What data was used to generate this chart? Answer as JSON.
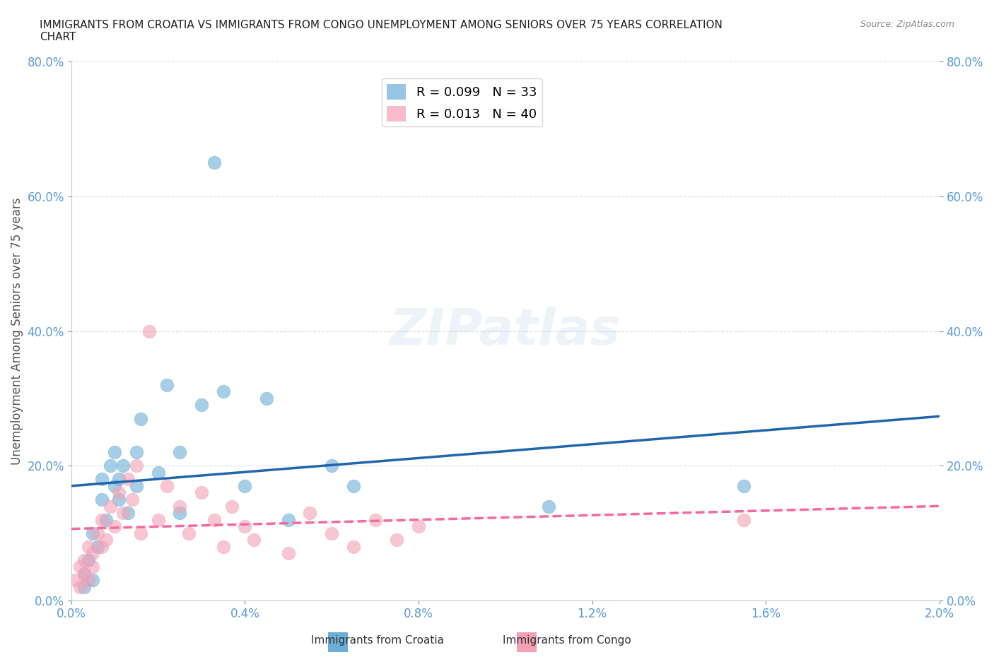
{
  "title": "IMMIGRANTS FROM CROATIA VS IMMIGRANTS FROM CONGO UNEMPLOYMENT AMONG SENIORS OVER 75 YEARS CORRELATION\nCHART",
  "source": "Source: ZipAtlas.com",
  "ylabel": "Unemployment Among Seniors over 75 years",
  "xlabel": "",
  "croatia_R": 0.099,
  "croatia_N": 33,
  "congo_R": 0.013,
  "congo_N": 40,
  "xlim": [
    0.0,
    0.02
  ],
  "ylim": [
    0.0,
    0.8
  ],
  "xticks": [
    0.0,
    0.004,
    0.008,
    0.012,
    0.016,
    0.02
  ],
  "yticks": [
    0.0,
    0.2,
    0.4,
    0.6,
    0.8
  ],
  "croatia_color": "#6baed6",
  "congo_color": "#f4a0b5",
  "croatia_line_color": "#2166ac",
  "congo_line_color": "#f768a1",
  "watermark": "ZIPatlas",
  "croatia_x": [
    0.0003,
    0.0003,
    0.0004,
    0.0005,
    0.0005,
    0.0006,
    0.0007,
    0.0007,
    0.0008,
    0.0009,
    0.001,
    0.001,
    0.0011,
    0.0011,
    0.0012,
    0.0013,
    0.0015,
    0.0015,
    0.0016,
    0.002,
    0.0022,
    0.0025,
    0.0025,
    0.003,
    0.0033,
    0.0035,
    0.004,
    0.0045,
    0.005,
    0.006,
    0.0065,
    0.011,
    0.0155
  ],
  "croatia_y": [
    0.02,
    0.04,
    0.06,
    0.03,
    0.1,
    0.08,
    0.15,
    0.18,
    0.12,
    0.2,
    0.17,
    0.22,
    0.18,
    0.15,
    0.2,
    0.13,
    0.17,
    0.22,
    0.27,
    0.19,
    0.32,
    0.13,
    0.22,
    0.29,
    0.65,
    0.31,
    0.17,
    0.3,
    0.12,
    0.2,
    0.17,
    0.14,
    0.17
  ],
  "congo_x": [
    0.0001,
    0.0002,
    0.0002,
    0.0003,
    0.0003,
    0.0004,
    0.0004,
    0.0005,
    0.0005,
    0.0006,
    0.0007,
    0.0007,
    0.0008,
    0.0009,
    0.001,
    0.0011,
    0.0012,
    0.0013,
    0.0014,
    0.0015,
    0.0016,
    0.0018,
    0.002,
    0.0022,
    0.0025,
    0.0027,
    0.003,
    0.0033,
    0.0035,
    0.0037,
    0.004,
    0.0042,
    0.005,
    0.0055,
    0.006,
    0.0065,
    0.007,
    0.0075,
    0.008,
    0.0155
  ],
  "congo_y": [
    0.03,
    0.02,
    0.05,
    0.04,
    0.06,
    0.03,
    0.08,
    0.05,
    0.07,
    0.1,
    0.08,
    0.12,
    0.09,
    0.14,
    0.11,
    0.16,
    0.13,
    0.18,
    0.15,
    0.2,
    0.1,
    0.4,
    0.12,
    0.17,
    0.14,
    0.1,
    0.16,
    0.12,
    0.08,
    0.14,
    0.11,
    0.09,
    0.07,
    0.13,
    0.1,
    0.08,
    0.12,
    0.09,
    0.11,
    0.12
  ],
  "background_color": "#ffffff",
  "grid_color": "#cccccc"
}
